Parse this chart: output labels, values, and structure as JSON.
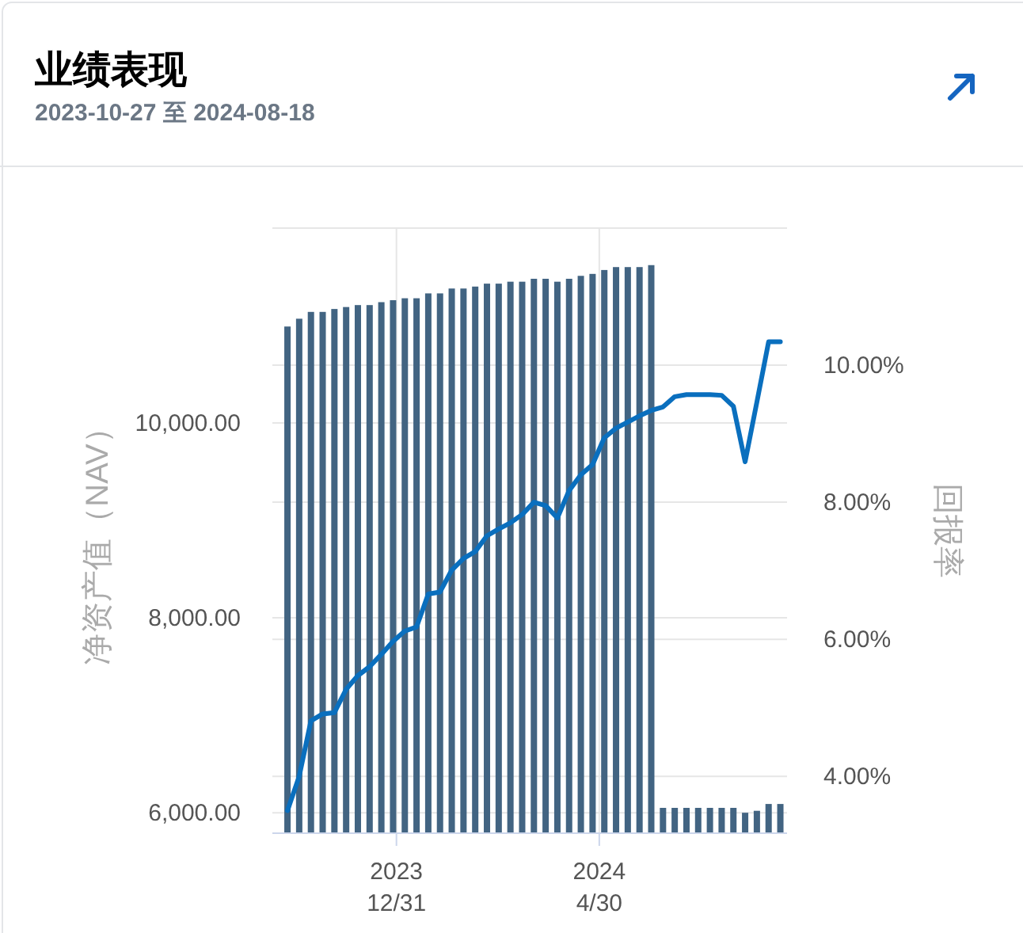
{
  "chart_data": {
    "type": "bar",
    "title": "业绩表现",
    "subtitle": "2023-10-27 至 2024-08-18",
    "ylabel": "净资产值（NAV）",
    "y2label": "回报率",
    "x": [
      "2023-10-27",
      "2023-11-03",
      "2023-11-10",
      "2023-11-17",
      "2023-11-24",
      "2023-12-01",
      "2023-12-08",
      "2023-12-15",
      "2023-12-22",
      "2023-12-29",
      "2024-01-05",
      "2024-01-12",
      "2024-01-19",
      "2024-01-26",
      "2024-02-02",
      "2024-02-09",
      "2024-02-16",
      "2024-02-23",
      "2024-03-01",
      "2024-03-08",
      "2024-03-15",
      "2024-03-22",
      "2024-03-29",
      "2024-04-05",
      "2024-04-12",
      "2024-04-19",
      "2024-04-26",
      "2024-05-03",
      "2024-05-10",
      "2024-05-17",
      "2024-05-24",
      "2024-05-31",
      "2024-06-07",
      "2024-06-14",
      "2024-06-21",
      "2024-06-28",
      "2024-07-05",
      "2024-07-12",
      "2024-07-19",
      "2024-07-26",
      "2024-08-02",
      "2024-08-09",
      "2024-08-16"
    ],
    "series": [
      {
        "axis": "y",
        "color": "#426482",
        "values": [
          10990,
          11070,
          11140,
          11140,
          11170,
          11190,
          11210,
          11210,
          11240,
          11260,
          11280,
          11280,
          11330,
          11330,
          11380,
          11380,
          11400,
          11430,
          11430,
          11450,
          11450,
          11480,
          11480,
          11450,
          11480,
          11510,
          11530,
          11570,
          11600,
          11600,
          11600,
          11620,
          6050,
          6050,
          6050,
          6050,
          6050,
          6050,
          6050,
          6000,
          6020,
          6090,
          6090
        ]
      },
      {
        "type": "line",
        "axis": "y2",
        "color": "#0a6fbe",
        "values": [
          3.5,
          4.0,
          4.81,
          4.91,
          4.93,
          5.27,
          5.47,
          5.6,
          5.78,
          5.97,
          6.12,
          6.18,
          6.66,
          6.69,
          7.01,
          7.18,
          7.28,
          7.51,
          7.61,
          7.7,
          7.82,
          8.0,
          7.95,
          7.77,
          8.17,
          8.4,
          8.55,
          8.94,
          9.08,
          9.17,
          9.26,
          9.34,
          9.39,
          9.54,
          9.57,
          9.57,
          9.57,
          9.56,
          9.4,
          8.59,
          9.46,
          10.34,
          10.34
        ]
      }
    ],
    "xlim": [
      "2023-10-18",
      "2024-08-20"
    ],
    "xticks": [
      {
        "value": "2023-12-31",
        "label": "2023\n12/31"
      },
      {
        "value": "2024-04-30",
        "label": "2024\n4/30"
      }
    ],
    "ylim": [
      5790,
      12000
    ],
    "yticks": [
      {
        "value": 6000,
        "label": "6,000.00"
      },
      {
        "value": 8000,
        "label": "8,000.00"
      },
      {
        "value": 10000,
        "label": "10,000.00"
      },
      {
        "value": 12000,
        "label": null
      }
    ],
    "y2lim": [
      3.17,
      12
    ],
    "y2ticks": [
      {
        "value": 4,
        "label": "4.00%"
      },
      {
        "value": 6,
        "label": "6.00%"
      },
      {
        "value": 8,
        "label": "8.00%"
      },
      {
        "value": 10,
        "label": "10.00%"
      },
      {
        "value": 12,
        "label": null
      }
    ],
    "grid": true
  }
}
